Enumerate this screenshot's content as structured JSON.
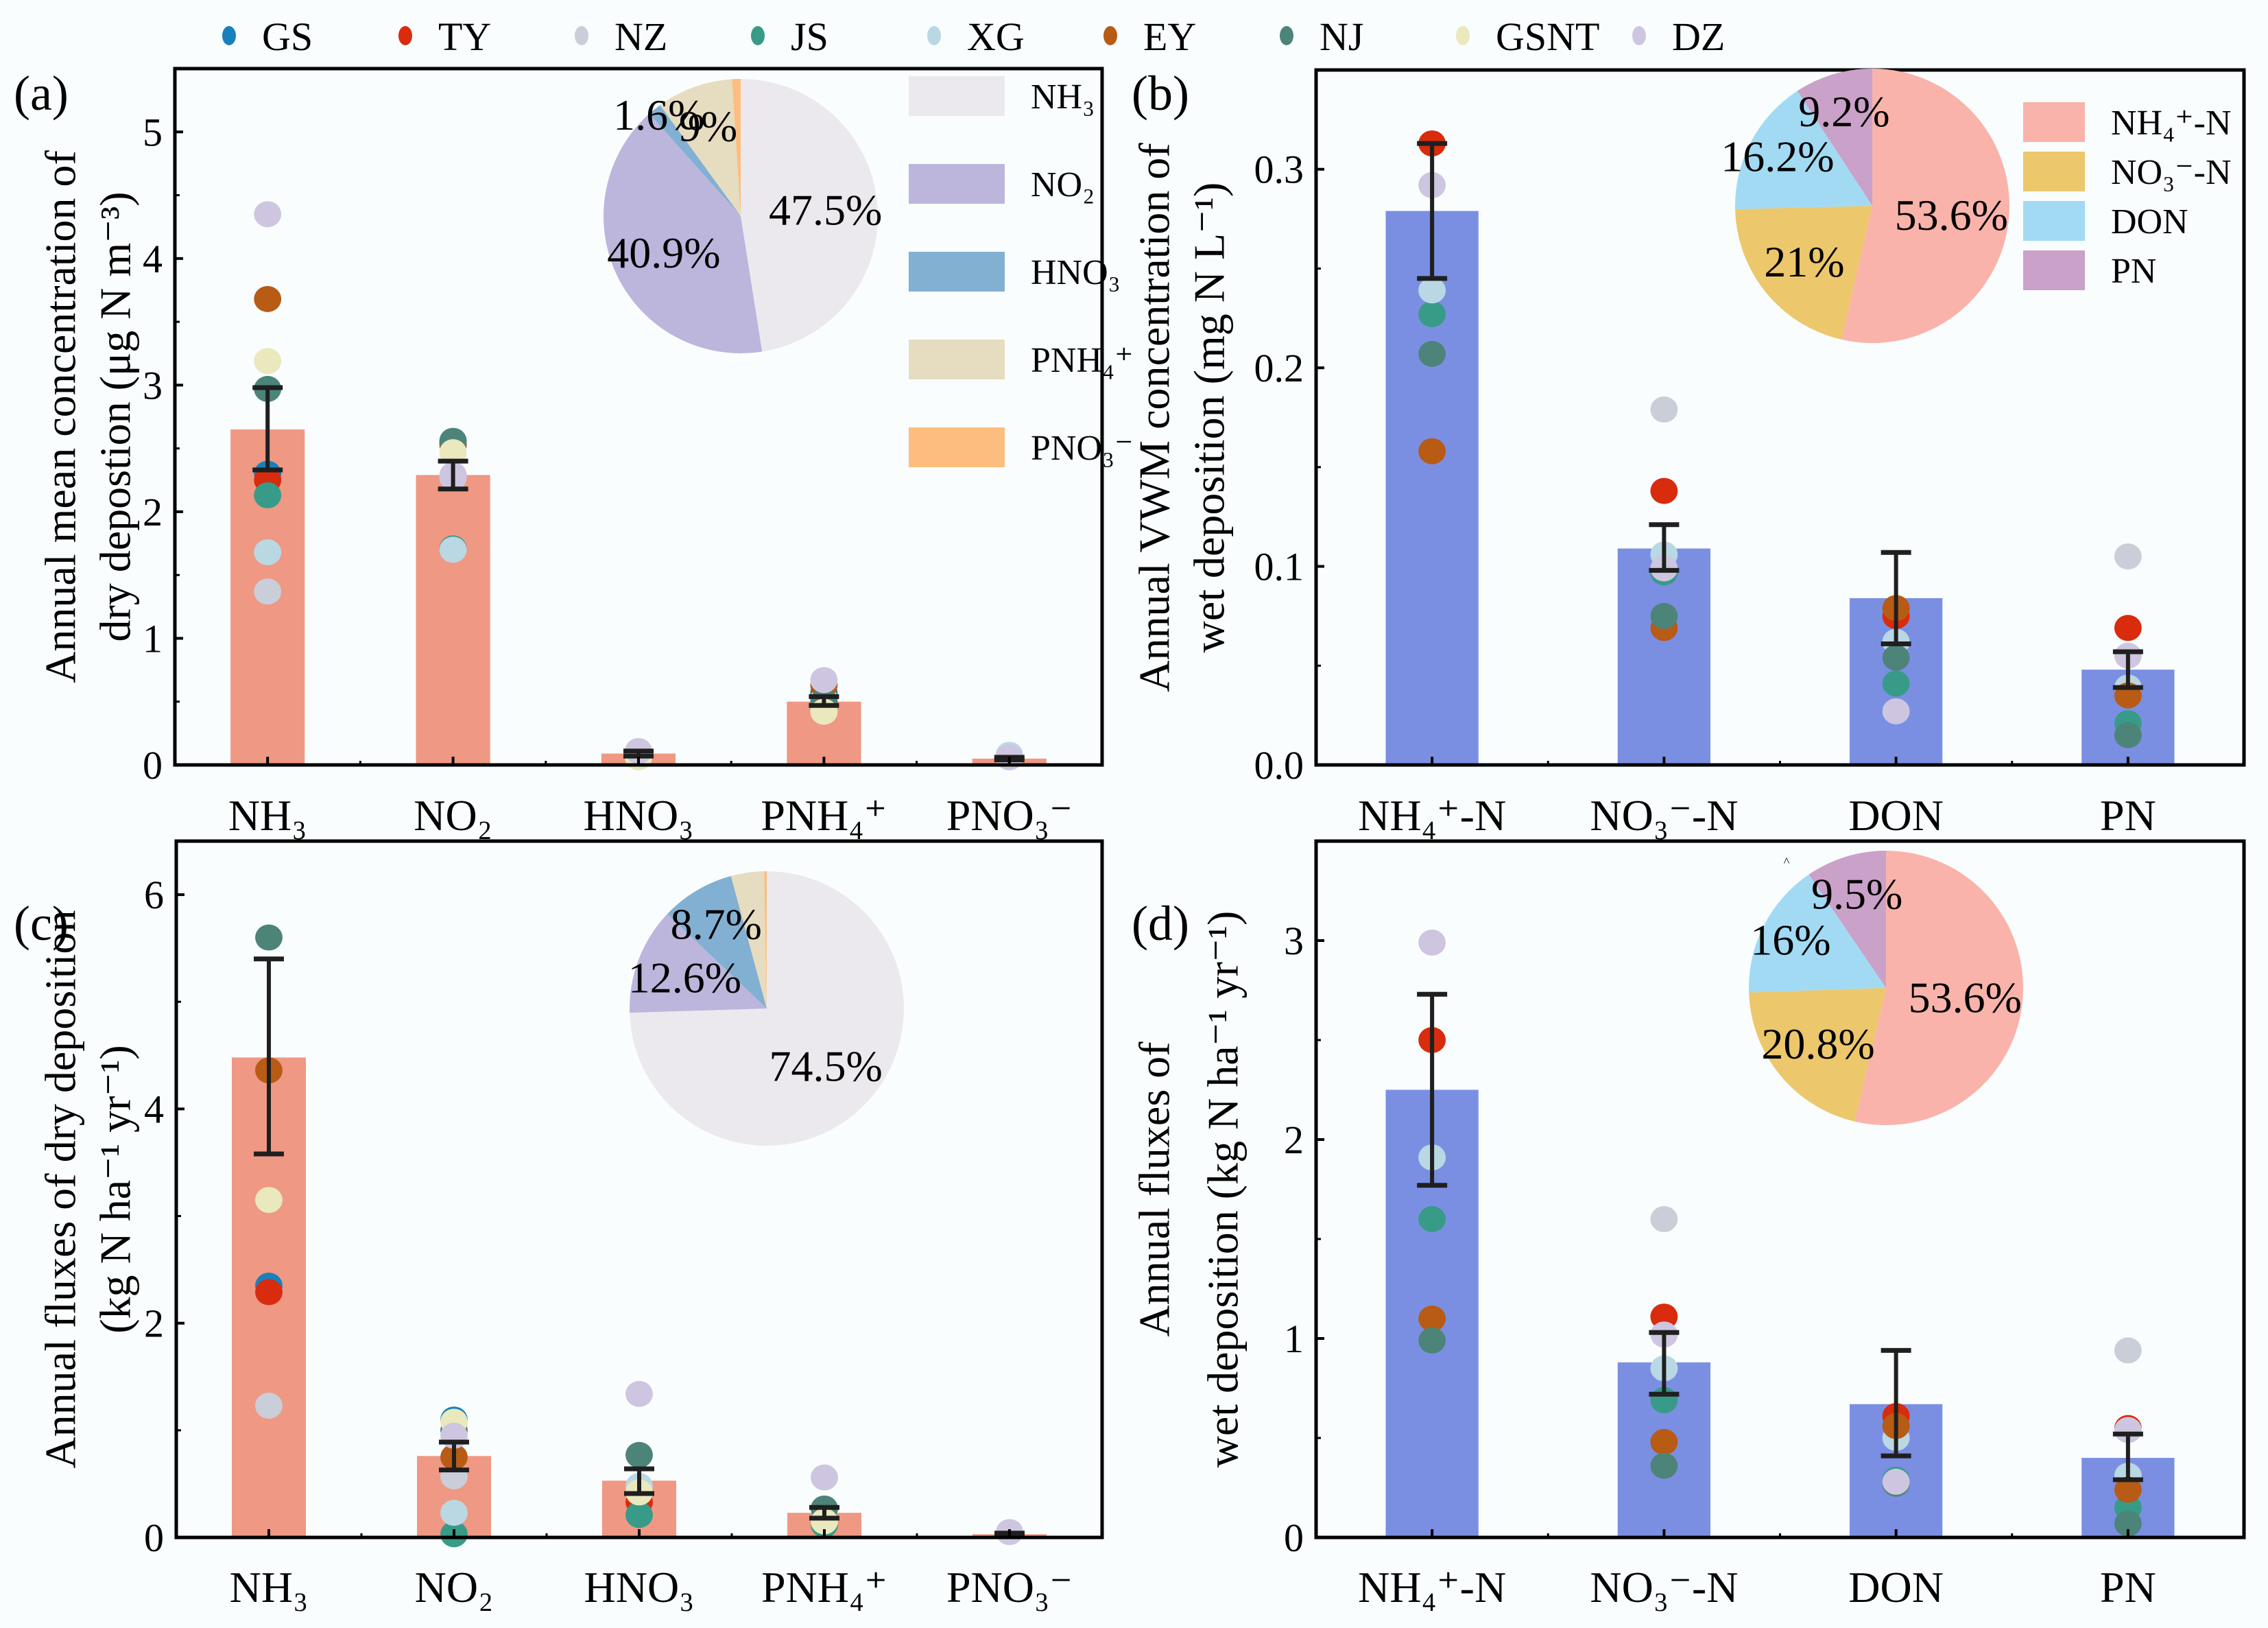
{
  "site_legend": {
    "items": [
      {
        "name": "GS",
        "color": "#1a80bb"
      },
      {
        "name": "TY",
        "color": "#d92b0d"
      },
      {
        "name": "NZ",
        "color": "#c9ced9"
      },
      {
        "name": "JS",
        "color": "#379b88"
      },
      {
        "name": "XG",
        "color": "#bad8e3"
      },
      {
        "name": "EY",
        "color": "#b85b15"
      },
      {
        "name": "NJ",
        "color": "#4d8479"
      },
      {
        "name": "GSNT",
        "color": "#eae8bd"
      },
      {
        "name": "DZ",
        "color": "#cec6e0"
      }
    ]
  },
  "colors": {
    "dry_bar": "#ef9883",
    "wet_bar": "#7b8fe2",
    "error_bar": "#1f1f1f",
    "axis": "#000000",
    "background": "#f9fdfe"
  },
  "chart_data": [
    {
      "panel": "(a)",
      "type": "bar",
      "title": "",
      "ylabel_line1": "Annual mean concentration of",
      "ylabel_line2": "dry depostion (μg N m⁻³)",
      "xlabel": "",
      "ylim": [
        0,
        5.5
      ],
      "yticks": [
        0,
        1,
        2,
        3,
        4,
        5
      ],
      "ytick_labels": [
        "0",
        "1",
        "2",
        "3",
        "4",
        "5"
      ],
      "grid": false,
      "categories": [
        "NH₃",
        "NO₂",
        "HNO₃",
        "PNH₄⁺",
        "PNO₃⁻"
      ],
      "values": [
        2.65,
        2.29,
        0.09,
        0.5,
        0.05
      ],
      "error_low": [
        2.33,
        2.18,
        0.07,
        0.47,
        0.04
      ],
      "error_high": [
        2.98,
        2.4,
        0.11,
        0.54,
        0.06
      ],
      "bar_color": "#ef9883",
      "points": [
        {
          "GS": 2.3,
          "TY": 2.25,
          "NZ": 1.37,
          "JS": 2.13,
          "XG": 1.68,
          "EY": 3.68,
          "NJ": 2.97,
          "GSNT": 3.19,
          "DZ": 4.35
        },
        {
          "GS": 2.55,
          "TY": 2.53,
          "NZ": 2.27,
          "JS": 1.71,
          "XG": 1.7,
          "EY": 2.54,
          "NJ": 2.56,
          "GSNT": 2.47,
          "DZ": 2.29
        },
        {
          "GSNT": 0.06,
          "DZ": 0.11
        },
        {
          "GS": 0.57,
          "JS": 0.53,
          "XG": 0.52,
          "EY": 0.63,
          "NJ": 0.5,
          "GSNT": 0.42,
          "DZ": 0.67
        },
        {
          "XG": 0.08,
          "DZ": 0.06
        }
      ],
      "inset_pie": {
        "type": "pie",
        "labels": [
          "NH₃",
          "NO₂",
          "HNO₃",
          "PNH₄⁺",
          "PNO₃⁻"
        ],
        "values": [
          47.5,
          40.9,
          1.6,
          9.0,
          1.0
        ],
        "value_labels": [
          "47.5%",
          "40.9%",
          "1.6%",
          "9%",
          ""
        ],
        "colors": [
          "#ebe9ee",
          "#bcb6dc",
          "#82b0d3",
          "#e6dcc0",
          "#fdbd7e"
        ],
        "legend": "right"
      }
    },
    {
      "panel": "(b)",
      "type": "bar",
      "title": "",
      "ylabel_line1": "Annual VWM concentration of",
      "ylabel_line2": "wet deposition (mg N L⁻¹)",
      "xlabel": "",
      "ylim": [
        0,
        0.35
      ],
      "yticks": [
        0,
        0.1,
        0.2,
        0.3
      ],
      "ytick_labels": [
        "0.0",
        "0.1",
        "0.2",
        "0.3"
      ],
      "grid": false,
      "categories": [
        "NH₄⁺-N",
        "NO₃⁻-N",
        "DON",
        "PN"
      ],
      "values": [
        0.279,
        0.109,
        0.084,
        0.048
      ],
      "error_low": [
        0.245,
        0.098,
        0.061,
        0.039
      ],
      "error_high": [
        0.313,
        0.121,
        0.107,
        0.057
      ],
      "bar_color": "#7b8fe2",
      "points": [
        {
          "TY": 0.313,
          "XG": 0.239,
          "JS": 0.227,
          "EY": 0.158,
          "NJ": 0.207,
          "DZ": 0.292
        },
        {
          "TY": 0.138,
          "NZ": 0.179,
          "JS": 0.097,
          "XG": 0.106,
          "EY": 0.069,
          "NJ": 0.075,
          "DZ": 0.099
        },
        {
          "TY": 0.075,
          "JS": 0.041,
          "XG": 0.062,
          "EY": 0.079,
          "NJ": 0.054,
          "DZ": 0.027
        },
        {
          "TY": 0.069,
          "NZ": 0.105,
          "JS": 0.021,
          "XG": 0.039,
          "EY": 0.035,
          "NJ": 0.015,
          "DZ": 0.055
        }
      ],
      "inset_pie": {
        "type": "pie",
        "labels": [
          "NH₄⁺-N",
          "NO₃⁻-N",
          "DON",
          "PN"
        ],
        "values": [
          53.6,
          21.0,
          16.2,
          9.2
        ],
        "value_labels": [
          "53.6%",
          "21%",
          "16.2%",
          "9.2%"
        ],
        "colors": [
          "#f9b3aa",
          "#ecc76b",
          "#a2daf4",
          "#caa1c8"
        ],
        "legend": "right"
      }
    },
    {
      "panel": "(c)",
      "type": "bar",
      "title": "",
      "ylabel_line1": "Annual fluxes of dry deposition",
      "ylabel_line2": "(kg N ha⁻¹ yr⁻¹)",
      "xlabel": "",
      "ylim": [
        0,
        6.5
      ],
      "yticks": [
        0,
        2,
        4,
        6
      ],
      "ytick_labels": [
        "0",
        "2",
        "4",
        "6"
      ],
      "grid": false,
      "categories": [
        "NH₃",
        "NO₂",
        "HNO₃",
        "PNH₄⁺",
        "PNO₃⁻"
      ],
      "values": [
        4.48,
        0.76,
        0.53,
        0.23,
        0.03
      ],
      "error_low": [
        3.58,
        0.63,
        0.41,
        0.18,
        0.02
      ],
      "error_high": [
        5.4,
        0.89,
        0.64,
        0.28,
        0.04
      ],
      "bar_color": "#ef9883",
      "points": [
        {
          "GS": 2.35,
          "TY": 2.29,
          "NZ": 1.23,
          "EY": 4.36,
          "NJ": 5.6,
          "GSNT": 3.15
        },
        {
          "GS": 1.1,
          "NZ": 0.57,
          "JS": 0.03,
          "XG": 0.23,
          "EY": 0.75,
          "NJ": 1.0,
          "GSNT": 1.08,
          "DZ": 0.95
        },
        {
          "TY": 0.33,
          "JS": 0.21,
          "XG": 0.48,
          "NJ": 0.77,
          "GSNT": 0.42,
          "DZ": 1.34
        },
        {
          "JS": 0.12,
          "NJ": 0.27,
          "GSNT": 0.15,
          "DZ": 0.56
        },
        {
          "DZ": 0.05
        }
      ],
      "inset_pie": {
        "type": "pie",
        "labels": [
          "NH₃",
          "NO₂",
          "HNO₃",
          "PNH₄⁺",
          "PNO₃⁻"
        ],
        "values": [
          74.5,
          12.6,
          8.7,
          3.9,
          0.3
        ],
        "value_labels": [
          "74.5%",
          "12.6%",
          "8.7%",
          "",
          ""
        ],
        "colors": [
          "#ebe9ee",
          "#bcb6dc",
          "#82b0d3",
          "#e6dcc0",
          "#fdbd7e"
        ],
        "legend": "none"
      }
    },
    {
      "panel": "(d)",
      "type": "bar",
      "title": "",
      "ylabel_line1": "Annual fluxes of",
      "ylabel_line2": "wet deposition (kg N ha⁻¹ yr⁻¹)",
      "xlabel": "",
      "ylim": [
        0,
        3.5
      ],
      "yticks": [
        0,
        1,
        2,
        3
      ],
      "ytick_labels": [
        "0",
        "1",
        "2",
        "3"
      ],
      "grid": false,
      "categories": [
        "NH₄⁺-N",
        "NO₃⁻-N",
        "DON",
        "PN"
      ],
      "values": [
        2.25,
        0.88,
        0.67,
        0.4
      ],
      "error_low": [
        1.77,
        0.72,
        0.41,
        0.29
      ],
      "error_high": [
        2.73,
        1.03,
        0.94,
        0.52
      ],
      "bar_color": "#7b8fe2",
      "points": [
        {
          "TY": 2.5,
          "JS": 1.6,
          "XG": 1.91,
          "EY": 1.1,
          "NJ": 0.99,
          "DZ": 2.99
        },
        {
          "TY": 1.11,
          "NZ": 1.6,
          "JS": 0.69,
          "XG": 0.85,
          "EY": 0.48,
          "NJ": 0.36,
          "DZ": 1.02
        },
        {
          "TY": 0.61,
          "JS": 0.29,
          "XG": 0.5,
          "EY": 0.56,
          "NJ": 0.27,
          "DZ": 0.28
        },
        {
          "TY": 0.55,
          "NZ": 0.94,
          "JS": 0.15,
          "XG": 0.31,
          "EY": 0.24,
          "NJ": 0.07,
          "DZ": 0.54
        }
      ],
      "inset_pie": {
        "type": "pie",
        "labels": [
          "NH₄⁺-N",
          "NO₃⁻-N",
          "DON",
          "PN"
        ],
        "values": [
          53.6,
          20.8,
          16.0,
          9.5
        ],
        "value_labels": [
          "53.6%",
          "20.8%",
          "16%",
          "9.5%"
        ],
        "colors": [
          "#f9b3aa",
          "#ecc76b",
          "#a2daf4",
          "#caa1c8"
        ],
        "legend": "none"
      },
      "annotation": "^"
    }
  ]
}
